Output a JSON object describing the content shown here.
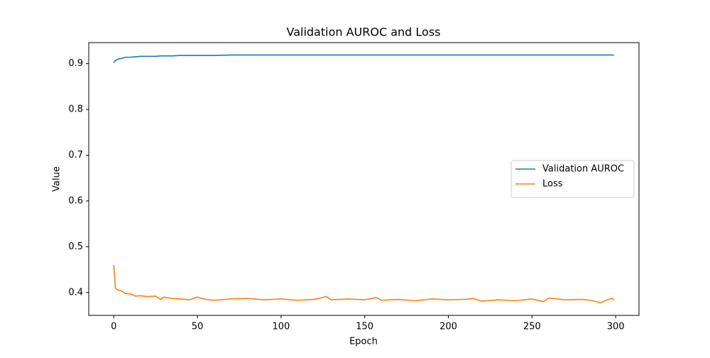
{
  "chart_data": {
    "type": "line",
    "title": "Validation AUROC and Loss",
    "xlabel": "Epoch",
    "ylabel": "Value",
    "x": [
      0,
      1,
      2,
      3,
      5,
      7,
      10,
      13,
      16,
      20,
      25,
      28,
      30,
      35,
      40,
      45,
      50,
      55,
      60,
      70,
      80,
      90,
      100,
      110,
      120,
      127,
      130,
      140,
      150,
      157,
      160,
      170,
      180,
      190,
      200,
      210,
      215,
      220,
      230,
      240,
      250,
      257,
      260,
      270,
      280,
      285,
      291,
      295,
      298,
      299
    ],
    "series": [
      {
        "name": "Validation AUROC",
        "color": "#1f77b4",
        "values": [
          0.902,
          0.907,
          0.909,
          0.91,
          0.912,
          0.914,
          0.914,
          0.915,
          0.916,
          0.916,
          0.916,
          0.917,
          0.917,
          0.917,
          0.918,
          0.918,
          0.918,
          0.918,
          0.918,
          0.919,
          0.919,
          0.919,
          0.919,
          0.919,
          0.919,
          0.919,
          0.919,
          0.919,
          0.919,
          0.919,
          0.919,
          0.919,
          0.919,
          0.919,
          0.919,
          0.919,
          0.919,
          0.919,
          0.919,
          0.919,
          0.919,
          0.919,
          0.919,
          0.919,
          0.919,
          0.919,
          0.919,
          0.919,
          0.919,
          0.919
        ]
      },
      {
        "name": "Loss",
        "color": "#ff7f0e",
        "values": [
          0.46,
          0.41,
          0.406,
          0.405,
          0.403,
          0.398,
          0.397,
          0.392,
          0.393,
          0.391,
          0.392,
          0.385,
          0.39,
          0.387,
          0.386,
          0.384,
          0.39,
          0.385,
          0.383,
          0.386,
          0.387,
          0.384,
          0.386,
          0.383,
          0.385,
          0.391,
          0.384,
          0.386,
          0.384,
          0.389,
          0.383,
          0.385,
          0.382,
          0.386,
          0.384,
          0.385,
          0.387,
          0.381,
          0.384,
          0.382,
          0.386,
          0.38,
          0.388,
          0.384,
          0.385,
          0.383,
          0.378,
          0.384,
          0.387,
          0.383
        ]
      }
    ],
    "xlim": [
      -14.95,
      313.95
    ],
    "ylim": [
      0.35,
      0.946
    ],
    "xticks": [
      0,
      50,
      100,
      150,
      200,
      250,
      300
    ],
    "yticks": [
      0.4,
      0.5,
      0.6,
      0.7,
      0.8,
      0.9
    ],
    "legend": "center right",
    "grid": false
  }
}
